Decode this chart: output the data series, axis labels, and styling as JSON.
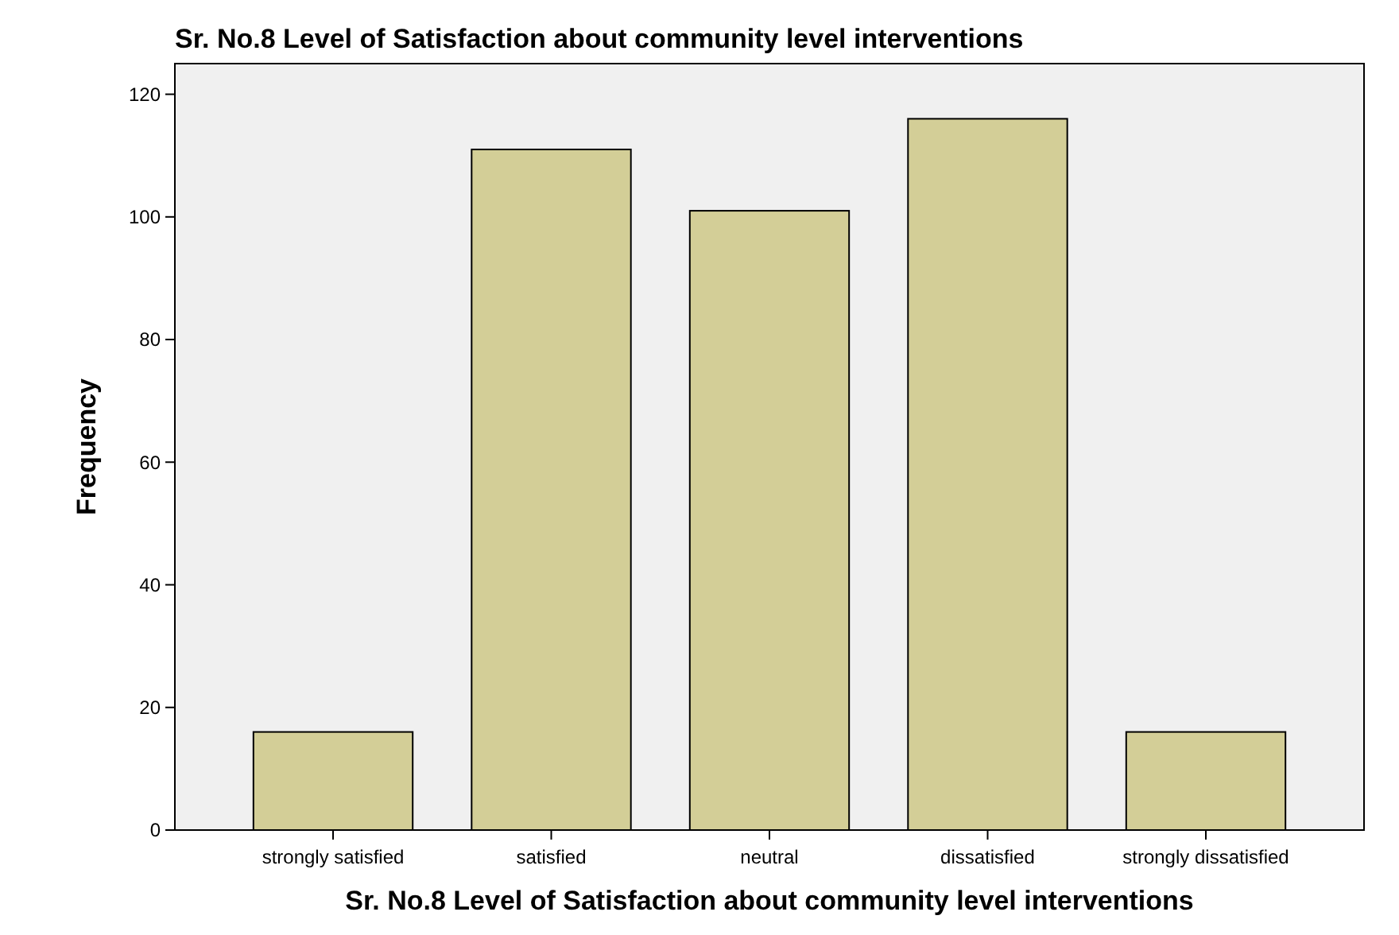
{
  "chart_data": {
    "type": "bar",
    "title": "Sr. No.8 Level of Satisfaction about community level interventions",
    "xlabel": "Sr. No.8 Level of Satisfaction about community level interventions",
    "ylabel": "Frequency",
    "categories": [
      "strongly satisfied",
      "satisfied",
      "neutral",
      "dissatisfied",
      "strongly dissatisfied"
    ],
    "values": [
      16,
      111,
      101,
      116,
      16
    ],
    "color": "#d3ce97",
    "ylim": [
      0,
      125
    ],
    "yticks": [
      0,
      20,
      40,
      60,
      80,
      100,
      120
    ],
    "grid": false
  }
}
